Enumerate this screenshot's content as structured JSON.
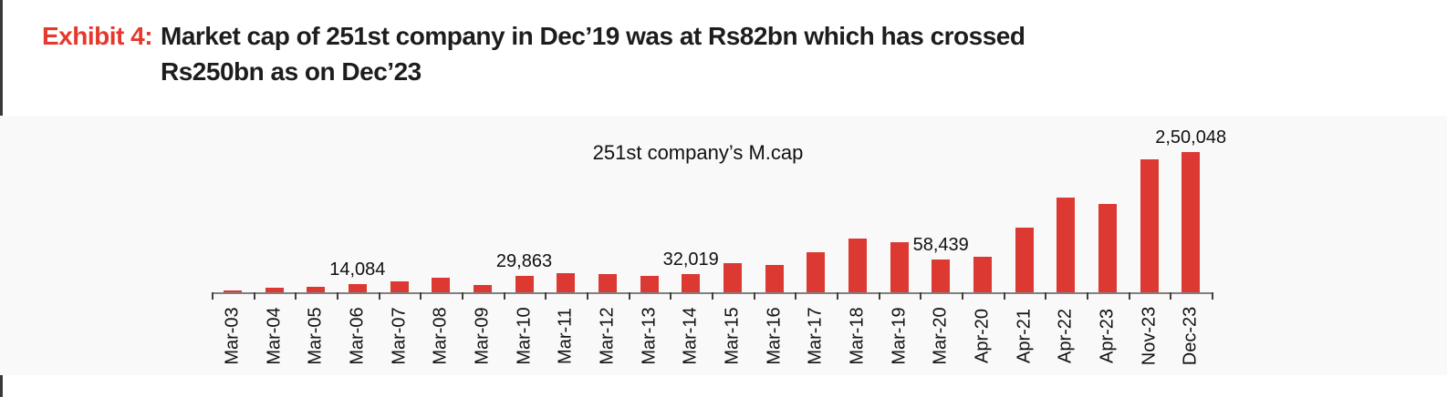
{
  "header": {
    "exhibit_label": "Exhibit 4:",
    "title_line1": "Market cap of 251st company in Dec’19 was at Rs82bn which has crossed",
    "title_line2": "Rs250bn as on Dec’23"
  },
  "colors": {
    "accent_red": "#e5392d",
    "bar_red": "#dc3932",
    "panel_bg": "#f9f9f9",
    "axis_line": "#808080",
    "tick": "#404040",
    "text": "#111111",
    "edge_line": "#3a3a3a"
  },
  "chart_data": {
    "type": "bar",
    "title": "251st company’s M.cap",
    "categories": [
      "Mar-03",
      "Mar-04",
      "Mar-05",
      "Mar-06",
      "Mar-07",
      "Mar-08",
      "Mar-09",
      "Mar-10",
      "Mar-11",
      "Mar-12",
      "Mar-13",
      "Mar-14",
      "Mar-15",
      "Mar-16",
      "Mar-17",
      "Mar-18",
      "Mar-19",
      "Mar-20",
      "Apr-20",
      "Apr-21",
      "Apr-22",
      "Apr-23",
      "Nov-23",
      "Dec-23"
    ],
    "values": [
      2500,
      7300,
      10200,
      14084,
      20000,
      25500,
      13500,
      29863,
      34000,
      32000,
      28700,
      32019,
      52000,
      49000,
      71700,
      94900,
      89200,
      58439,
      63300,
      114800,
      168700,
      158100,
      236800,
      250048
    ],
    "data_labels": [
      "",
      "",
      "",
      "14,084",
      "",
      "",
      "",
      "29,863",
      "",
      "",
      "",
      "32,019",
      "",
      "",
      "",
      "",
      "",
      "58,439",
      "",
      "",
      "",
      "",
      "",
      "2,50,048"
    ],
    "xlabel": "",
    "ylabel": "",
    "ylim": [
      0,
      260000
    ],
    "grid": false,
    "legend": false,
    "bar_color": "#dc3932"
  }
}
